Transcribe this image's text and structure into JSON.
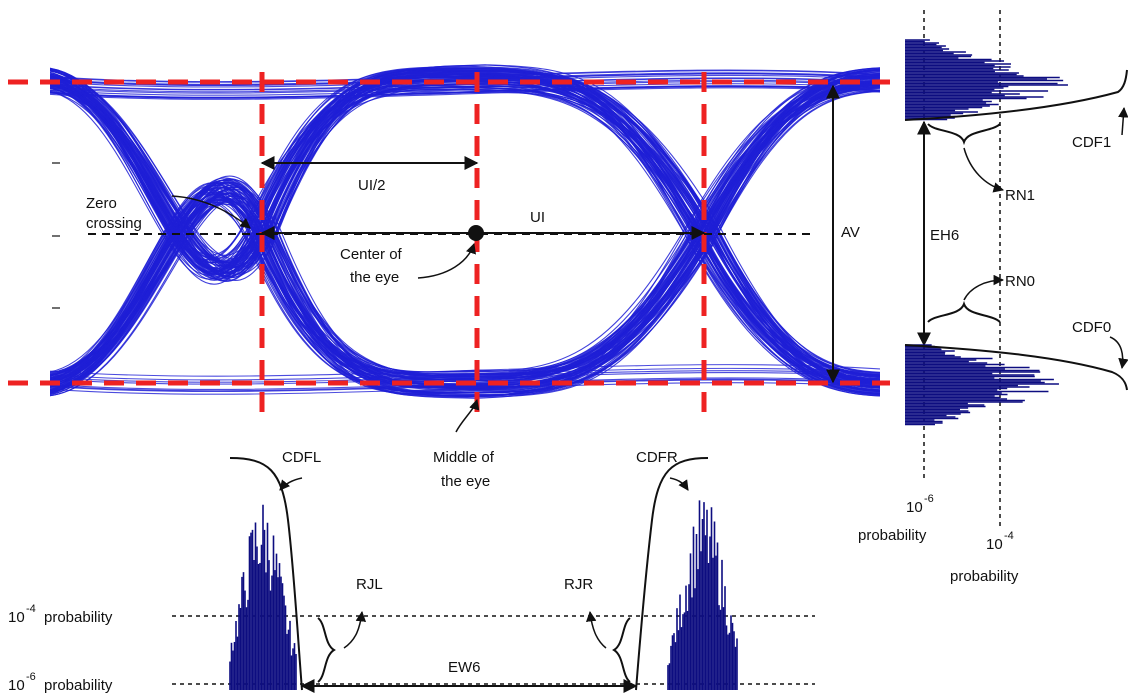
{
  "labels": {
    "zero_crossing_1": "Zero",
    "zero_crossing_2": "crossing",
    "ui_half": "UI/2",
    "ui": "UI",
    "center_1": "Center of",
    "center_2": "the eye",
    "middle_1": "Middle of",
    "middle_2": "the eye",
    "av": "AV",
    "eh6": "EH6",
    "ew6": "EW6",
    "cdfl": "CDFL",
    "cdfr": "CDFR",
    "cdf0": "CDF0",
    "cdf1": "CDF1",
    "rjl": "RJL",
    "rjr": "RJR",
    "rn0": "RN0",
    "rn1": "RN1"
  },
  "probability": {
    "left_1e4_base": "10",
    "left_1e4_exp": "-4",
    "left_1e4_word": "probability",
    "left_1e6_base": "10",
    "left_1e6_exp": "-6",
    "left_1e6_word": "probability",
    "right_1e6_base": "10",
    "right_1e6_exp": "-6",
    "right_1e6_word": "probability",
    "right_1e4_base": "10",
    "right_1e4_exp": "-4",
    "right_1e4_word": "probability"
  },
  "colors": {
    "eye_trace": "#1f1fd6",
    "histogram": "#0d0d80",
    "guide_dashed_red": "#ee2222",
    "annotation": "#111111"
  }
}
